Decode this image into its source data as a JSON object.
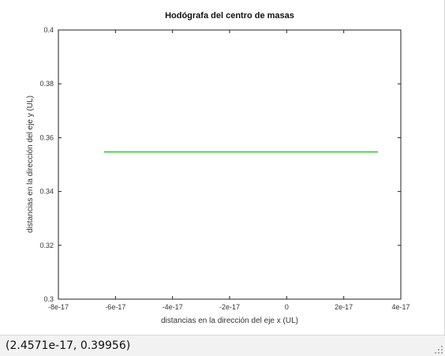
{
  "status_bar": {
    "coordinates": "(2.4571e-17, 0.39956)"
  },
  "chart_data": {
    "type": "line",
    "title": "Hodógrafa del centro de masas",
    "xlabel": "distancias en la dirección del eje x (UL)",
    "ylabel": "distancias en la dirección del eje y (UL)",
    "xlim": [
      -8e-17,
      4e-17
    ],
    "ylim": [
      0.3,
      0.4
    ],
    "x_ticks": [
      {
        "value": -8e-17,
        "label": "-8e-17"
      },
      {
        "value": -6e-17,
        "label": "-6e-17"
      },
      {
        "value": -4e-17,
        "label": "-4e-17"
      },
      {
        "value": -2e-17,
        "label": "-2e-17"
      },
      {
        "value": 0,
        "label": "0"
      },
      {
        "value": 2e-17,
        "label": "2e-17"
      },
      {
        "value": 4e-17,
        "label": "4e-17"
      }
    ],
    "y_ticks": [
      {
        "value": 0.3,
        "label": "0.3"
      },
      {
        "value": 0.32,
        "label": "0.32"
      },
      {
        "value": 0.34,
        "label": "0.34"
      },
      {
        "value": 0.36,
        "label": "0.36"
      },
      {
        "value": 0.38,
        "label": "0.38"
      },
      {
        "value": 0.4,
        "label": "0.4"
      }
    ],
    "grid": false,
    "series": [
      {
        "color": "#00cc00",
        "x": [
          -6.4e-17,
          3.2e-17
        ],
        "y": [
          0.3547,
          0.3547
        ]
      }
    ]
  }
}
